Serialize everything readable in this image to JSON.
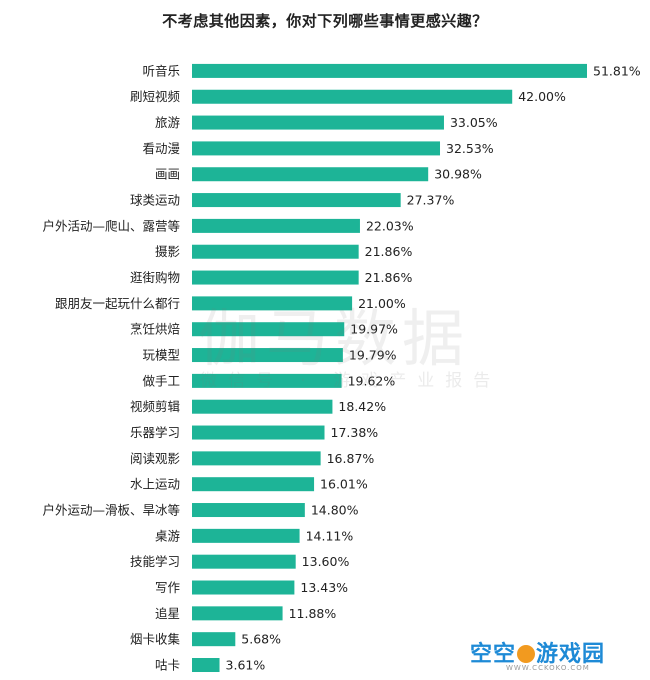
{
  "watermark": {
    "main": "伽马数据",
    "sub": "微信号 · 游戏产业报告"
  },
  "brand": {
    "name_left": "空空",
    "name_right": "游戏园",
    "url": "WWW.CCKOKO.COM"
  },
  "chart_data": {
    "type": "bar",
    "orientation": "horizontal",
    "title": "不考虑其他因素，你对下列哪些事情更感兴趣？",
    "bar_color": "#1db497",
    "label_suffix": "%",
    "categories": [
      "听音乐",
      "刷短视频",
      "旅游",
      "看动漫",
      "画画",
      "球类运动",
      "户外活动—爬山、露营等",
      "摄影",
      "逛街购物",
      "跟朋友一起玩什么都行",
      "烹饪烘焙",
      "玩模型",
      "做手工",
      "视频剪辑",
      "乐器学习",
      "阅读观影",
      "水上运动",
      "户外运动—滑板、旱冰等",
      "桌游",
      "技能学习",
      "写作",
      "追星",
      "烟卡收集",
      "咕卡"
    ],
    "values": [
      51.81,
      42.0,
      33.05,
      32.53,
      30.98,
      27.37,
      22.03,
      21.86,
      21.86,
      21.0,
      19.97,
      19.79,
      19.62,
      18.42,
      17.38,
      16.87,
      16.01,
      14.8,
      14.11,
      13.6,
      13.43,
      11.88,
      5.68,
      3.61
    ],
    "xlim": [
      0,
      51.81
    ],
    "grid": false,
    "legend": "none"
  }
}
